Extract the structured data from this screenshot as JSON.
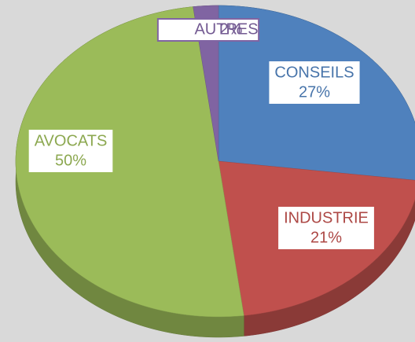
{
  "chart_data": {
    "type": "pie",
    "categories": [
      "CONSEILS",
      "INDUSTRIE",
      "AVOCATS",
      "AUTRES"
    ],
    "values": [
      27,
      21,
      50,
      2
    ],
    "value_labels": [
      "27%",
      "21%",
      "50%",
      "2%"
    ],
    "colors": [
      "#4f81bd",
      "#c0504d",
      "#9bbb59",
      "#8064a2"
    ]
  }
}
